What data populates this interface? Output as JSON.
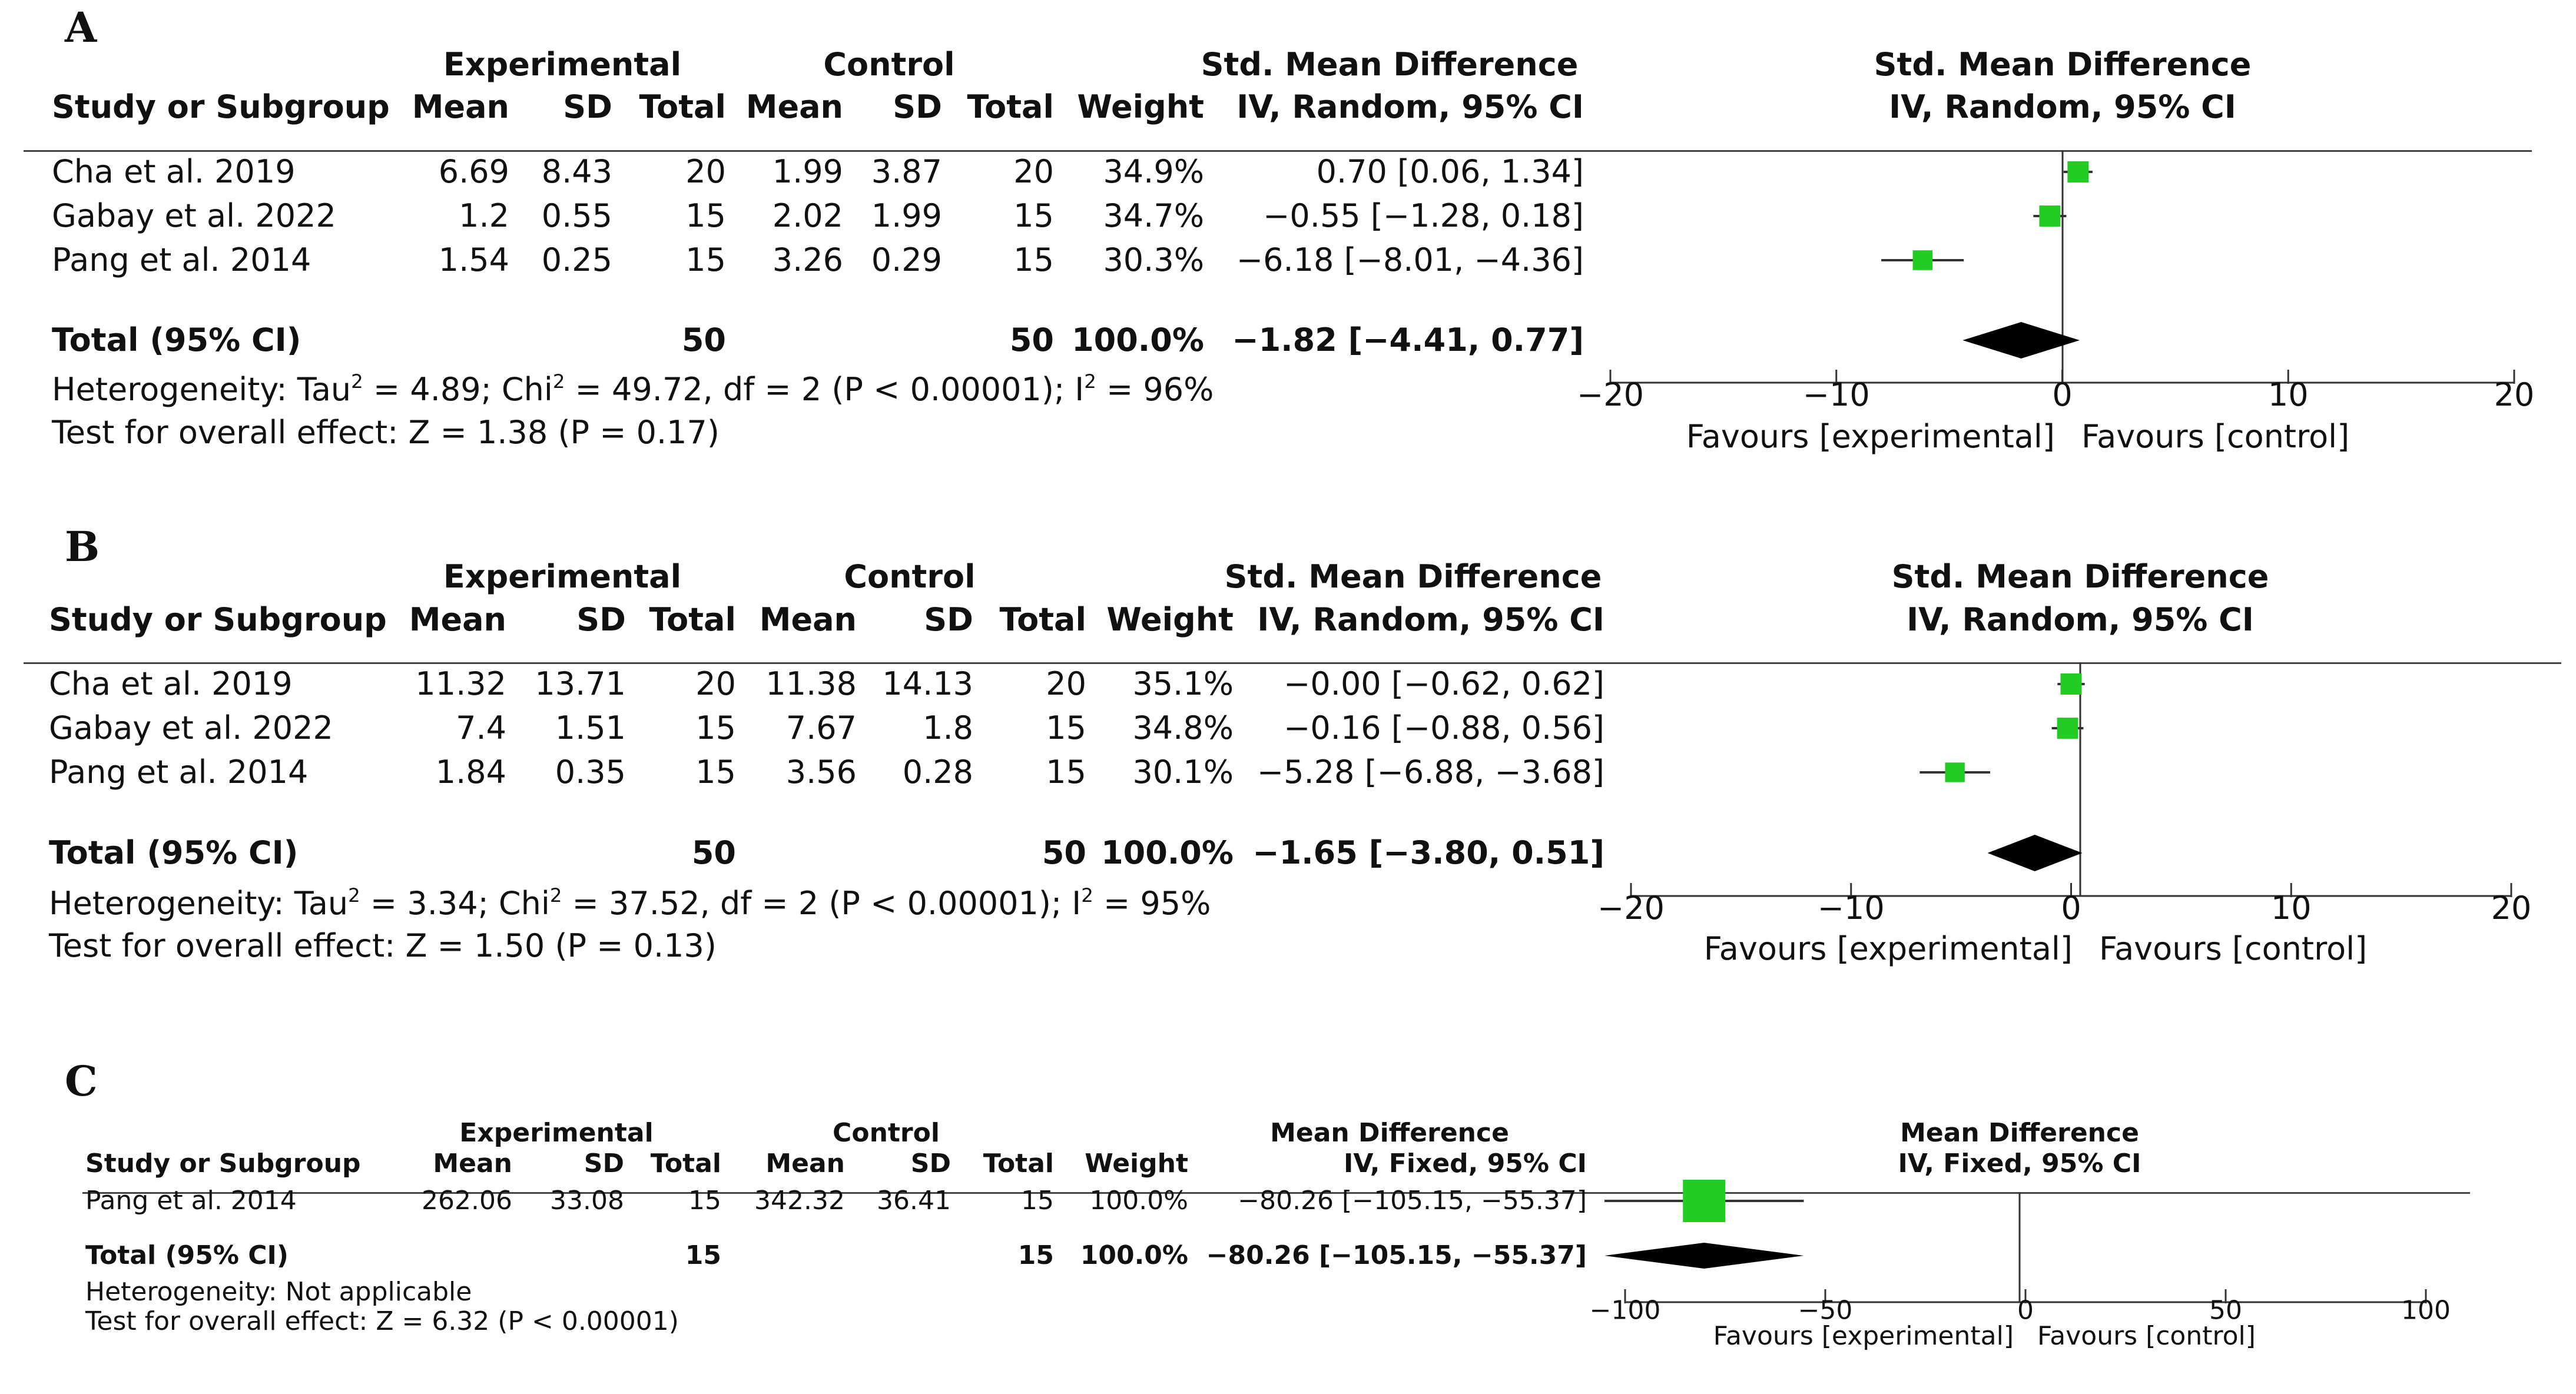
{
  "panels": [
    {
      "id": "A",
      "label": "A",
      "effect_header": "Std. Mean Difference",
      "method": "IV, Random, 95% CI",
      "headers": {
        "group_exp": "Experimental",
        "group_ctl": "Control",
        "study": "Study or Subgroup",
        "mean": "Mean",
        "sd": "SD",
        "total": "Total",
        "weight": "Weight"
      },
      "studies": [
        {
          "name": "Cha et al. 2019",
          "exp_mean": "6.69",
          "exp_sd": "8.43",
          "exp_total": "20",
          "ctl_mean": "1.99",
          "ctl_sd": "3.87",
          "ctl_total": "20",
          "weight": "34.9%",
          "ci_text": "0.70 [0.06, 1.34]"
        },
        {
          "name": "Gabay et al. 2022",
          "exp_mean": "1.2",
          "exp_sd": "0.55",
          "exp_total": "15",
          "ctl_mean": "2.02",
          "ctl_sd": "1.99",
          "ctl_total": "15",
          "weight": "34.7%",
          "ci_text": "−0.55 [−1.28, 0.18]"
        },
        {
          "name": "Pang et al. 2014",
          "exp_mean": "1.54",
          "exp_sd": "0.25",
          "exp_total": "15",
          "ctl_mean": "3.26",
          "ctl_sd": "0.29",
          "ctl_total": "15",
          "weight": "30.3%",
          "ci_text": "−6.18 [−8.01, −4.36]"
        }
      ],
      "total": {
        "label": "Total (95% CI)",
        "exp_total": "50",
        "ctl_total": "50",
        "weight": "100.0%",
        "ci_text": "−1.82 [−4.41, 0.77]"
      },
      "heterogeneity_html": "Heterogeneity: Tau<sup>2</sup> = 4.89; Chi<sup>2</sup> = 49.72, df = 2 (P &lt; 0.00001); I<sup>2</sup> = 96%",
      "overall_effect": "Test for overall effect: Z = 1.38 (P = 0.17)",
      "favours_left": "Favours [experimental]",
      "favours_right": "Favours [control]"
    },
    {
      "id": "B",
      "label": "B",
      "effect_header": "Std. Mean Difference",
      "method": "IV, Random, 95% CI",
      "headers": {
        "group_exp": "Experimental",
        "group_ctl": "Control",
        "study": "Study or Subgroup",
        "mean": "Mean",
        "sd": "SD",
        "total": "Total",
        "weight": "Weight"
      },
      "studies": [
        {
          "name": "Cha et al. 2019",
          "exp_mean": "11.32",
          "exp_sd": "13.71",
          "exp_total": "20",
          "ctl_mean": "11.38",
          "ctl_sd": "14.13",
          "ctl_total": "20",
          "weight": "35.1%",
          "ci_text": "−0.00 [−0.62, 0.62]"
        },
        {
          "name": "Gabay et al. 2022",
          "exp_mean": "7.4",
          "exp_sd": "1.51",
          "exp_total": "15",
          "ctl_mean": "7.67",
          "ctl_sd": "1.8",
          "ctl_total": "15",
          "weight": "34.8%",
          "ci_text": "−0.16 [−0.88, 0.56]"
        },
        {
          "name": "Pang et al. 2014",
          "exp_mean": "1.84",
          "exp_sd": "0.35",
          "exp_total": "15",
          "ctl_mean": "3.56",
          "ctl_sd": "0.28",
          "ctl_total": "15",
          "weight": "30.1%",
          "ci_text": "−5.28 [−6.88, −3.68]"
        }
      ],
      "total": {
        "label": "Total (95% CI)",
        "exp_total": "50",
        "ctl_total": "50",
        "weight": "100.0%",
        "ci_text": "−1.65 [−3.80, 0.51]"
      },
      "heterogeneity_html": "Heterogeneity: Tau<sup>2</sup> = 3.34; Chi<sup>2</sup> = 37.52, df = 2 (P &lt; 0.00001); I<sup>2</sup> = 95%",
      "overall_effect": "Test for overall effect: Z = 1.50 (P = 0.13)",
      "favours_left": "Favours [experimental]",
      "favours_right": "Favours [control]"
    },
    {
      "id": "C",
      "label": "C",
      "effect_header": "Mean Difference",
      "method": "IV, Fixed, 95% CI",
      "headers": {
        "group_exp": "Experimental",
        "group_ctl": "Control",
        "study": "Study or Subgroup",
        "mean": "Mean",
        "sd": "SD",
        "total": "Total",
        "weight": "Weight"
      },
      "studies": [
        {
          "name": "Pang et al. 2014",
          "exp_mean": "262.06",
          "exp_sd": "33.08",
          "exp_total": "15",
          "ctl_mean": "342.32",
          "ctl_sd": "36.41",
          "ctl_total": "15",
          "weight": "100.0%",
          "ci_text": "−80.26 [−105.15, −55.37]"
        }
      ],
      "total": {
        "label": "Total (95% CI)",
        "exp_total": "15",
        "ctl_total": "15",
        "weight": "100.0%",
        "ci_text": "−80.26 [−105.15, −55.37]"
      },
      "heterogeneity_html": "Heterogeneity: Not applicable",
      "overall_effect": "Test for overall effect: Z = 6.32 (P < 0.00001)",
      "favours_left": "Favours [experimental]",
      "favours_right": "Favours [control]"
    }
  ],
  "chart_data": [
    {
      "type": "forest",
      "panel": "A",
      "title": "Std. Mean Difference IV, Random, 95% CI",
      "xlim": [
        -20,
        20
      ],
      "ticks": [
        -20,
        -10,
        0,
        10,
        20
      ],
      "tick_labels": [
        "−20",
        "−10",
        "0",
        "10",
        "20"
      ],
      "studies": [
        {
          "name": "Cha et al. 2019",
          "est": 0.7,
          "lo": 0.06,
          "hi": 1.34,
          "weight": 34.9
        },
        {
          "name": "Gabay et al. 2022",
          "est": -0.55,
          "lo": -1.28,
          "hi": 0.18,
          "weight": 34.7
        },
        {
          "name": "Pang et al. 2014",
          "est": -6.18,
          "lo": -8.01,
          "hi": -4.36,
          "weight": 30.3
        }
      ],
      "pooled": {
        "est": -1.82,
        "lo": -4.41,
        "hi": 0.77
      },
      "marker_color": "#22cc22"
    },
    {
      "type": "forest",
      "panel": "B",
      "title": "Std. Mean Difference IV, Random, 95% CI",
      "xlim": [
        -20,
        20
      ],
      "ticks": [
        -20,
        -10,
        0,
        10,
        20
      ],
      "tick_labels": [
        "−20",
        "−10",
        "0",
        "10",
        "20"
      ],
      "studies": [
        {
          "name": "Cha et al. 2019",
          "est": -0.0,
          "lo": -0.62,
          "hi": 0.62,
          "weight": 35.1
        },
        {
          "name": "Gabay et al. 2022",
          "est": -0.16,
          "lo": -0.88,
          "hi": 0.56,
          "weight": 34.8
        },
        {
          "name": "Pang et al. 2014",
          "est": -5.28,
          "lo": -6.88,
          "hi": -3.68,
          "weight": 30.1
        }
      ],
      "pooled": {
        "est": -1.65,
        "lo": -3.8,
        "hi": 0.51
      },
      "marker_color": "#22cc22"
    },
    {
      "type": "forest",
      "panel": "C",
      "title": "Mean Difference IV, Fixed, 95% CI",
      "xlim": [
        -100,
        100
      ],
      "ticks": [
        -100,
        -50,
        0,
        50,
        100
      ],
      "tick_labels": [
        "−100",
        "−50",
        "0",
        "50",
        "100"
      ],
      "studies": [
        {
          "name": "Pang et al. 2014",
          "est": -80.26,
          "lo": -105.15,
          "hi": -55.37,
          "weight": 100.0
        }
      ],
      "pooled": {
        "est": -80.26,
        "lo": -105.15,
        "hi": -55.37
      },
      "marker_color": "#22cc22"
    }
  ]
}
